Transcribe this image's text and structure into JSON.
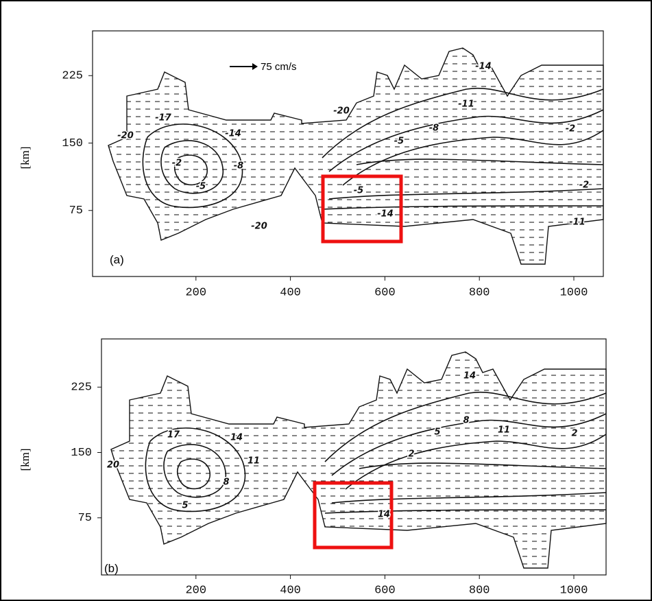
{
  "panels": [
    {
      "label": "(a)",
      "y_axis_label": "[km]",
      "scale_label": "75 cm/s",
      "yticks": [
        225,
        150,
        75
      ],
      "xticks": [
        200,
        400,
        600,
        800,
        1000
      ],
      "contour_labels": [
        "-20",
        "-17",
        "-14",
        "-2",
        "-8",
        "-5",
        "-20",
        "-20",
        "-8",
        "-11",
        "-14",
        "-5",
        "-5",
        "-14",
        "-2",
        "-11",
        "-2"
      ]
    },
    {
      "label": "(b)",
      "y_axis_label": "[km]",
      "yticks": [
        225,
        150,
        75
      ],
      "xticks": [
        200,
        400,
        600,
        800,
        1000
      ],
      "contour_labels": [
        "20",
        "17",
        "14",
        "11",
        "8",
        "5",
        "14",
        "8",
        "5",
        "11",
        "2",
        "2",
        "14"
      ]
    }
  ]
}
